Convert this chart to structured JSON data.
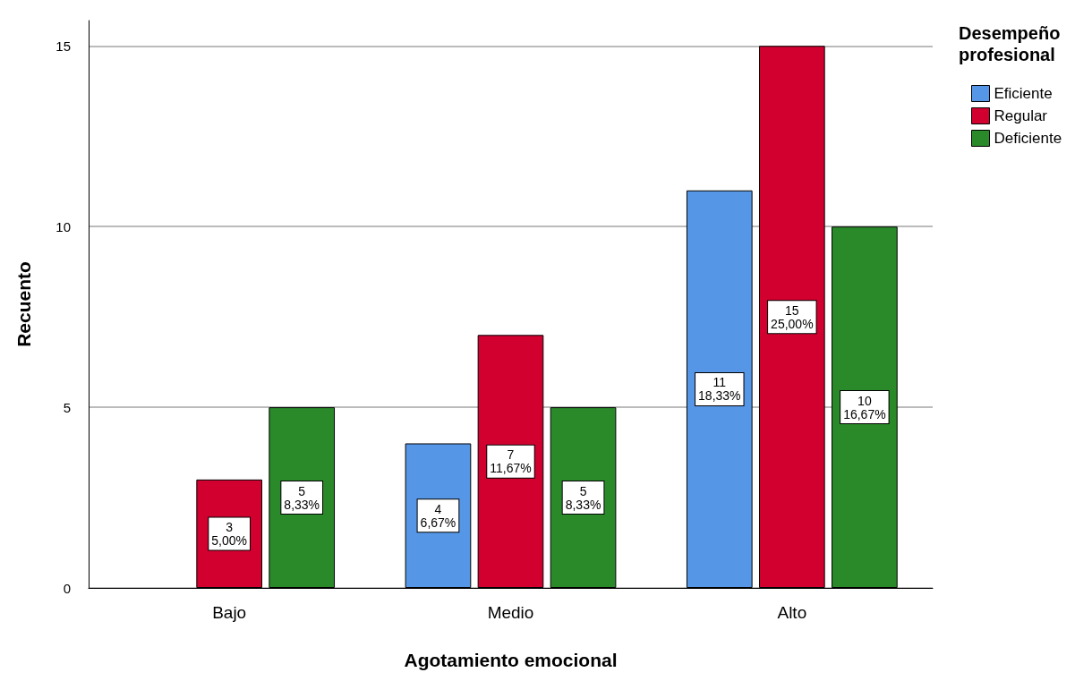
{
  "chart_data": {
    "type": "bar",
    "xlabel": "Agotamiento emocional",
    "ylabel": "Recuento",
    "legend_title": "Desempeño profesional",
    "categories": [
      "Bajo",
      "Medio",
      "Alto"
    ],
    "series": [
      {
        "name": "Eficiente",
        "color": "#5596e6",
        "values": [
          null,
          4,
          11
        ],
        "value_labels": [
          null,
          "4\n6,67%",
          "11\n18,33%"
        ]
      },
      {
        "name": "Regular",
        "color": "#d1002f",
        "values": [
          3,
          7,
          15
        ],
        "value_labels": [
          "3\n5,00%",
          "7\n11,67%",
          "15\n25,00%"
        ]
      },
      {
        "name": "Deficiente",
        "color": "#2a8a2a",
        "values": [
          5,
          5,
          10
        ],
        "value_labels": [
          "5\n8,33%",
          "5\n8,33%",
          "10\n16,67%"
        ]
      }
    ],
    "ylim": [
      0,
      15.7
    ],
    "yticks": [
      0,
      5,
      10,
      15
    ],
    "grid": "y",
    "legend": "top right"
  }
}
